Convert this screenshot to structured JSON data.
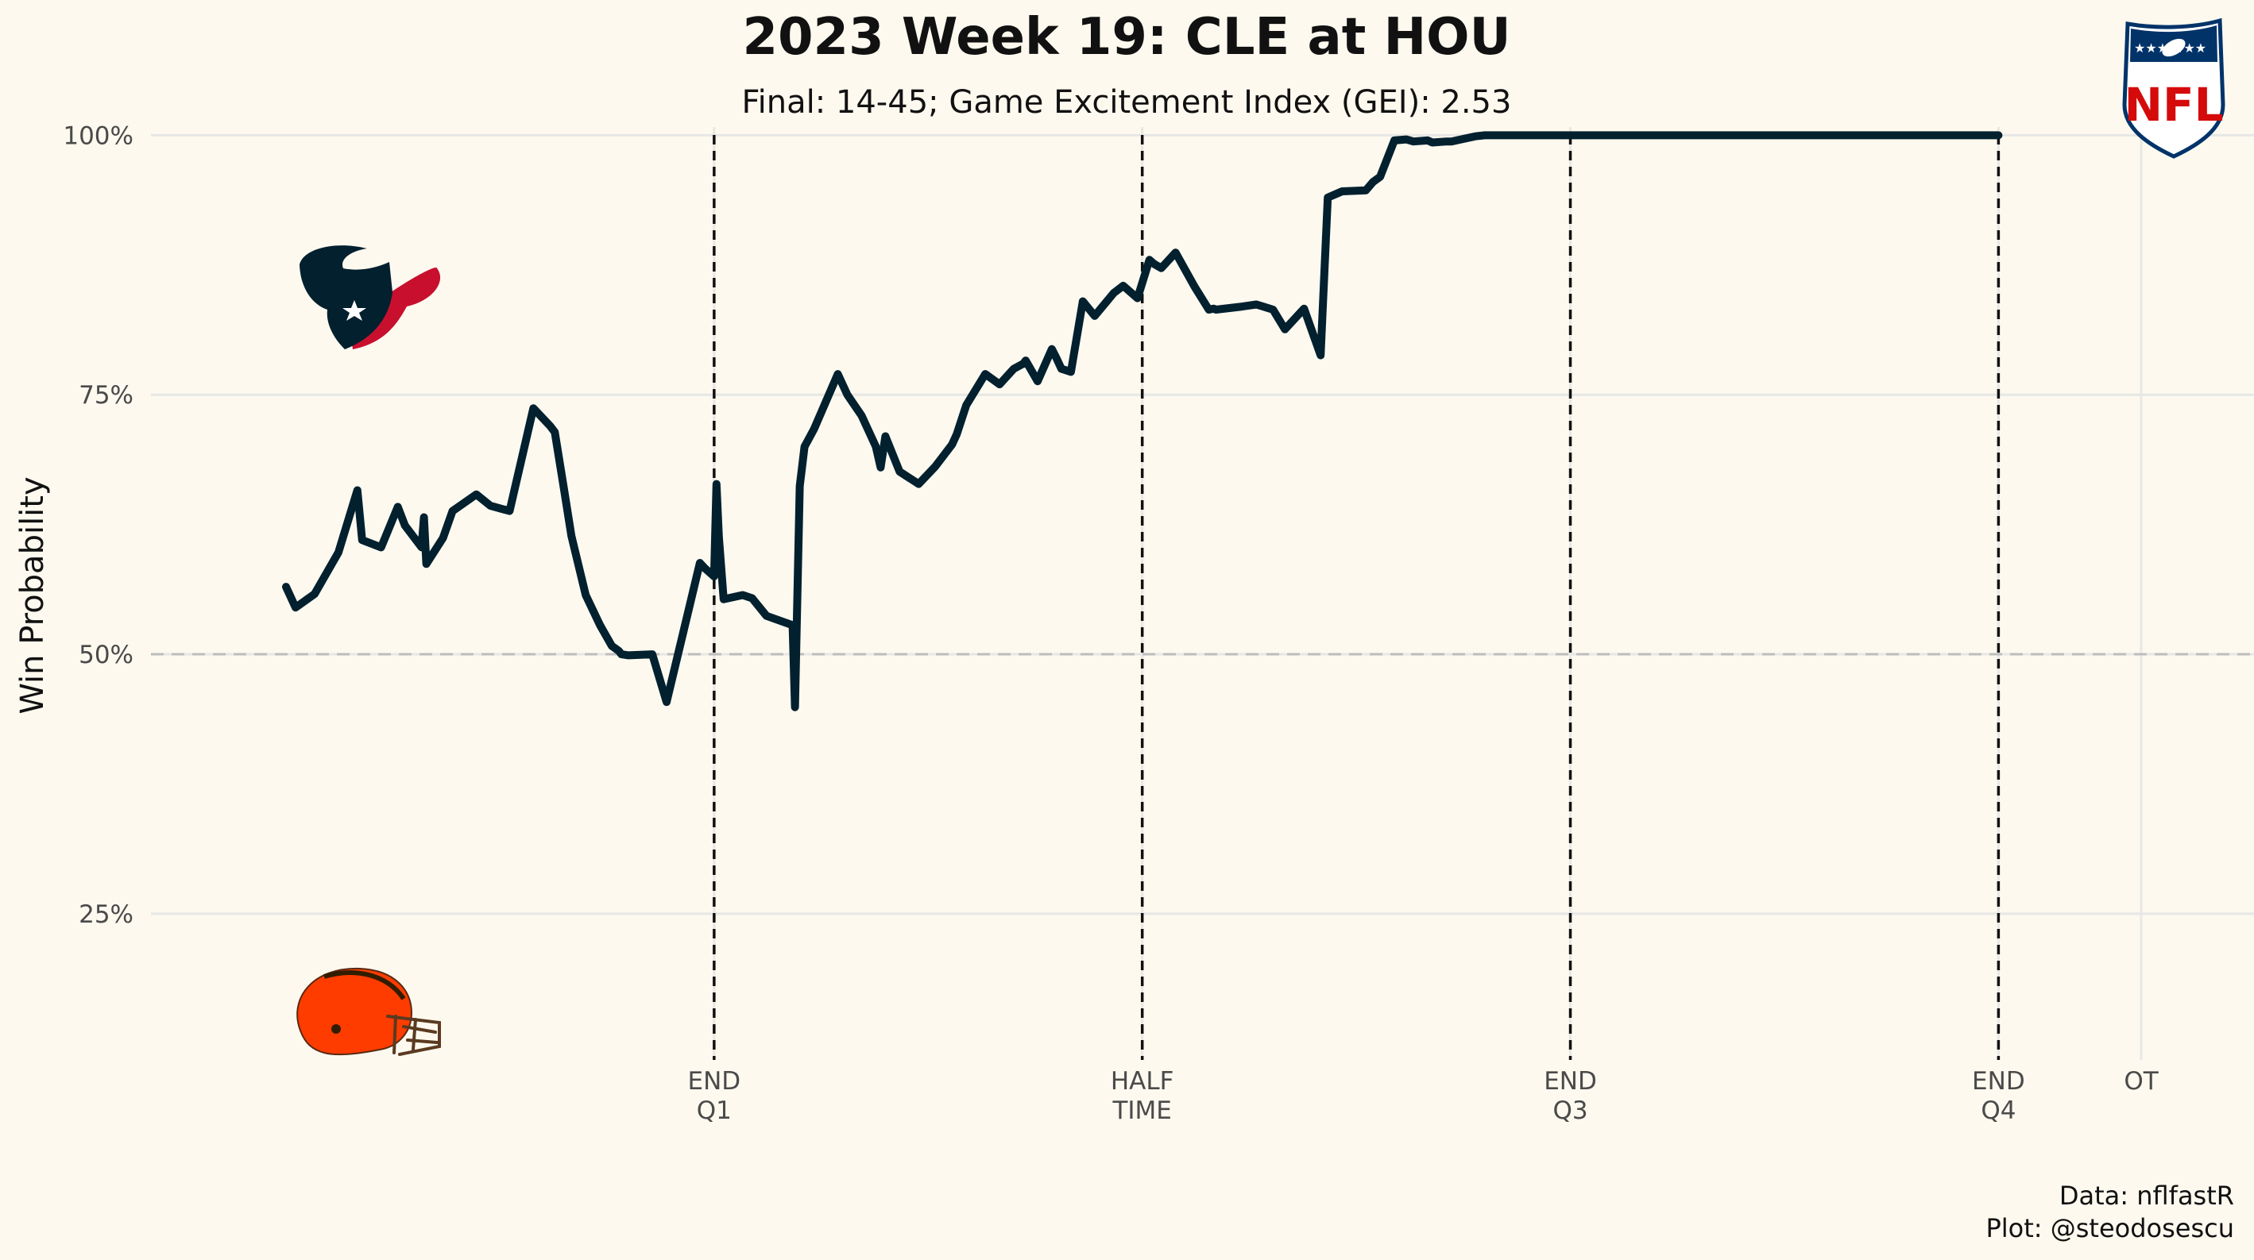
{
  "chart_data": {
    "type": "line",
    "title": "2023 Week 19: CLE at HOU",
    "subtitle": "Final: 14-45; Game Excitement Index (GEI): 2.53",
    "xlabel": "",
    "ylabel": "Win Probability",
    "ylim": [
      0.1,
      1.05
    ],
    "xlim": [
      0,
      3900
    ],
    "y_ticks": [
      {
        "value": 0.25,
        "label": "25%"
      },
      {
        "value": 0.5,
        "label": "50%"
      },
      {
        "value": 0.75,
        "label": "75%"
      },
      {
        "value": 1.0,
        "label": "100%"
      }
    ],
    "x_ticks": [
      {
        "value": 900,
        "label1": "END",
        "label2": "Q1"
      },
      {
        "value": 1800,
        "label1": "HALF",
        "label2": "TIME"
      },
      {
        "value": 2700,
        "label1": "END",
        "label2": "Q3"
      },
      {
        "value": 3600,
        "label1": "END",
        "label2": "Q4"
      },
      {
        "value": 3900,
        "label1": "OT",
        "label2": ""
      }
    ],
    "quarter_lines": [
      900,
      1800,
      2700,
      3600
    ],
    "reference_line": 0.5,
    "series": [
      {
        "name": "HOU win probability",
        "color": "#03202f",
        "x": [
          0,
          20,
          60,
          110,
          150,
          160,
          200,
          235,
          250,
          285,
          290,
          295,
          330,
          350,
          400,
          430,
          470,
          520,
          555,
          565,
          585,
          600,
          630,
          660,
          685,
          700,
          705,
          720,
          770,
          800,
          870,
          880,
          900,
          905,
          910,
          920,
          960,
          980,
          1010,
          1065,
          1070,
          1080,
          1090,
          1110,
          1160,
          1180,
          1210,
          1240,
          1250,
          1260,
          1290,
          1330,
          1365,
          1400,
          1410,
          1430,
          1470,
          1500,
          1530,
          1550,
          1555,
          1580,
          1610,
          1620,
          1630,
          1650,
          1675,
          1700,
          1740,
          1760,
          1790,
          1815,
          1825,
          1840,
          1870,
          1910,
          1940,
          1950,
          1955,
          2010,
          2040,
          2075,
          2100,
          2140,
          2175,
          2190,
          2210,
          2220,
          2270,
          2285,
          2300,
          2330,
          2355,
          2370,
          2400,
          2410,
          2440,
          2450,
          2470,
          2500,
          2520,
          2530,
          2555,
          2600,
          2700,
          2800,
          3600
        ],
        "y": [
          0.565,
          0.545,
          0.558,
          0.598,
          0.658,
          0.61,
          0.603,
          0.642,
          0.624,
          0.603,
          0.632,
          0.587,
          0.612,
          0.638,
          0.654,
          0.643,
          0.638,
          0.737,
          0.72,
          0.714,
          0.657,
          0.614,
          0.557,
          0.528,
          0.508,
          0.503,
          0.5,
          0.499,
          0.5,
          0.454,
          0.588,
          0.583,
          0.575,
          0.664,
          0.613,
          0.553,
          0.557,
          0.554,
          0.537,
          0.528,
          0.449,
          0.662,
          0.7,
          0.717,
          0.77,
          0.75,
          0.73,
          0.7,
          0.68,
          0.71,
          0.676,
          0.664,
          0.681,
          0.702,
          0.712,
          0.74,
          0.77,
          0.76,
          0.775,
          0.78,
          0.783,
          0.763,
          0.794,
          0.785,
          0.775,
          0.772,
          0.84,
          0.826,
          0.848,
          0.855,
          0.843,
          0.88,
          0.876,
          0.872,
          0.887,
          0.854,
          0.832,
          0.833,
          0.832,
          0.835,
          0.837,
          0.832,
          0.813,
          0.833,
          0.788,
          0.94,
          0.944,
          0.946,
          0.947,
          0.955,
          0.96,
          0.995,
          0.996,
          0.994,
          0.995,
          0.993,
          0.994,
          0.994,
          0.996,
          0.999,
          1.0,
          1.0,
          1.0,
          1.0,
          1.0,
          1.0,
          1.0
        ]
      }
    ],
    "logos": [
      {
        "team": "HOU",
        "name": "houston-texans-logo",
        "position": "upper-left"
      },
      {
        "team": "CLE",
        "name": "cleveland-browns-helmet-logo",
        "position": "lower-left"
      },
      {
        "team": "NFL",
        "name": "nfl-shield-logo",
        "position": "top-right",
        "text": "NFL"
      }
    ]
  },
  "caption": {
    "line1": "Data: nflfastR",
    "line2": "Plot: @steodosescu"
  },
  "colors": {
    "background": "#fdf9ef",
    "line": "#03202f",
    "gridline": "#e7e7e4",
    "quarter_line": "#111111",
    "reference_line": "#bdbdbd",
    "texans_navy": "#03202f",
    "texans_red": "#c8102e",
    "browns_orange": "#ff3c00",
    "browns_brown": "#311d00",
    "nfl_blue": "#013369",
    "nfl_red": "#d50a0a"
  }
}
